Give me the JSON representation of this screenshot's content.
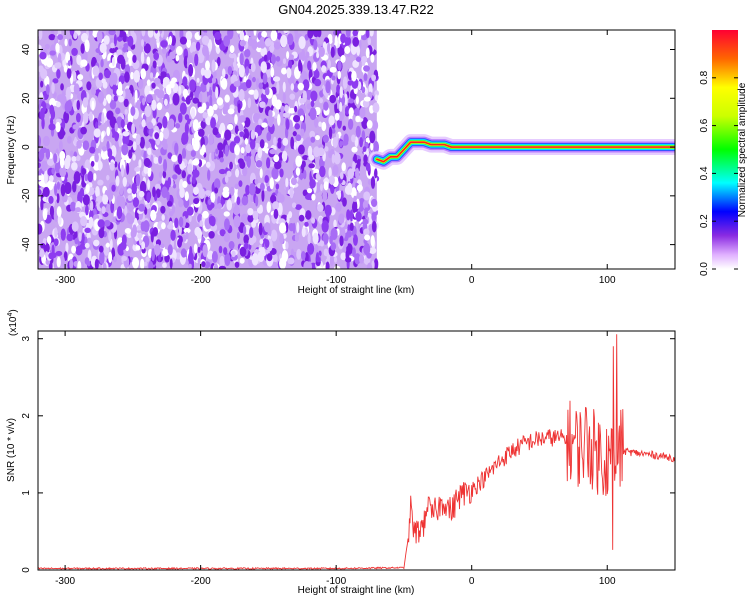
{
  "title": "GN04.2025.339.13.47.R22",
  "chart_data": [
    {
      "type": "heatmap",
      "xlabel": "Height of straight line (km)",
      "ylabel": "Frequency (Hz)",
      "xlim": [
        -320,
        150
      ],
      "ylim": [
        -50,
        48
      ],
      "xticks": [
        -300,
        -200,
        -100,
        0,
        100
      ],
      "yticks": [
        -40,
        -20,
        0,
        20,
        40
      ],
      "noise_region_x": [
        -320,
        -70
      ],
      "ridge": {
        "x": [
          -70,
          -65,
          -60,
          -55,
          -50,
          -45,
          -40,
          -35,
          -30,
          -25,
          -20,
          -15,
          -10,
          -5,
          0,
          20,
          40,
          60,
          80,
          95,
          100,
          110,
          150
        ],
        "y": [
          -5,
          -6,
          -4,
          -4,
          -1,
          2,
          2,
          2,
          1,
          1,
          1,
          0,
          0,
          0,
          0,
          0,
          0,
          0,
          0,
          0,
          0,
          0,
          0
        ]
      },
      "colorbar": {
        "label": "Normalized spectral amplitude",
        "ticks": [
          0.0,
          0.2,
          0.4,
          0.6,
          0.8
        ],
        "range": [
          0,
          1
        ]
      }
    },
    {
      "type": "line",
      "xlabel": "Height of straight line (km)",
      "ylabel": "SNR (10 * v/v)",
      "multiplier": "(x10",
      "multiplier_exp": "4",
      "xlim": [
        -320,
        150
      ],
      "ylim": [
        0,
        3.1
      ],
      "xticks": [
        -300,
        -200,
        -100,
        0,
        100
      ],
      "yticks": [
        0,
        1,
        2,
        3
      ],
      "color": "#ee3333",
      "series": [
        {
          "x": [
            -320,
            -200,
            -100,
            -50,
            -47,
            -45,
            -42,
            -40,
            -35,
            -33,
            -30,
            -25,
            -20,
            -15,
            -10,
            -5,
            0,
            10,
            20,
            30,
            40,
            50,
            60,
            70,
            75,
            80,
            85,
            90,
            95,
            100,
            103,
            105,
            108,
            110,
            120,
            130,
            140,
            150
          ],
          "y": [
            0.02,
            0.02,
            0.02,
            0.03,
            0.4,
            0.8,
            0.45,
            0.5,
            0.6,
            0.9,
            0.7,
            0.8,
            0.9,
            0.75,
            0.95,
            1.0,
            1.05,
            1.2,
            1.4,
            1.55,
            1.65,
            1.7,
            1.72,
            1.7,
            1.65,
            1.6,
            1.7,
            1.55,
            1.5,
            1.45,
            1.5,
            1.6,
            1.55,
            1.55,
            1.52,
            1.5,
            1.48,
            1.45
          ]
        }
      ]
    }
  ]
}
